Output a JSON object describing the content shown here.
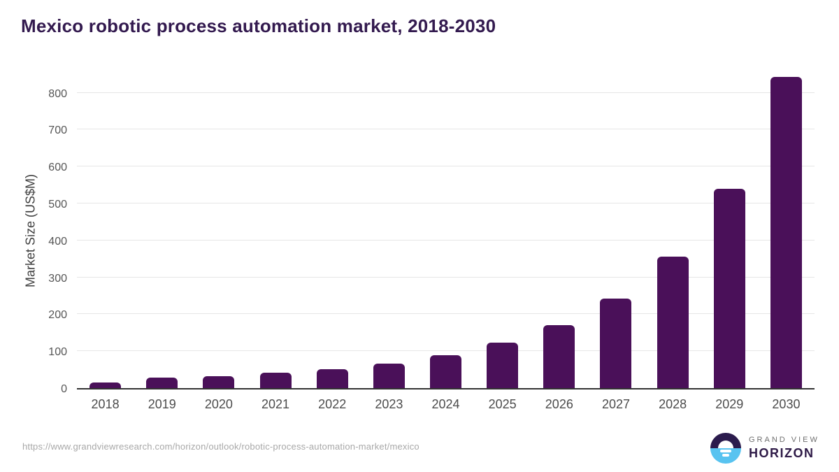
{
  "title": "Mexico robotic process automation market, 2018-2030",
  "chart_data": {
    "type": "bar",
    "title": "Mexico robotic process automation market, 2018-2030",
    "categories": [
      "2018",
      "2019",
      "2020",
      "2021",
      "2022",
      "2023",
      "2024",
      "2025",
      "2026",
      "2027",
      "2028",
      "2029",
      "2030"
    ],
    "values": [
      16,
      29,
      33,
      41,
      52,
      67,
      90,
      123,
      170,
      242,
      356,
      540,
      843
    ],
    "xlabel": "",
    "ylabel": "Market Size (US$M)",
    "ylim": [
      0,
      860
    ],
    "yticks": [
      0,
      100,
      200,
      300,
      400,
      500,
      600,
      700,
      800
    ],
    "grid": true,
    "legend": false,
    "bar_color": "#4a1059"
  },
  "footer": {
    "url": "https://www.grandviewresearch.com/horizon/outlook/robotic-process-automation-market/mexico",
    "logo": {
      "line1": "GRAND VIEW",
      "line2": "HORIZON",
      "icon": "horizon-sun-circle-icon"
    }
  },
  "colors": {
    "bar": "#4a1059",
    "title": "#331a4f",
    "tick_text": "#555555",
    "axis_label": "#3f3f3f",
    "gridline": "#e6e6e6",
    "baseline": "#333333",
    "url_text": "#a8a8a8",
    "logo_navy": "#2b1b4d",
    "logo_blue": "#58c3f0",
    "logo_gray": "#6e6e6e",
    "logo_horizon": "#2e1a47"
  }
}
